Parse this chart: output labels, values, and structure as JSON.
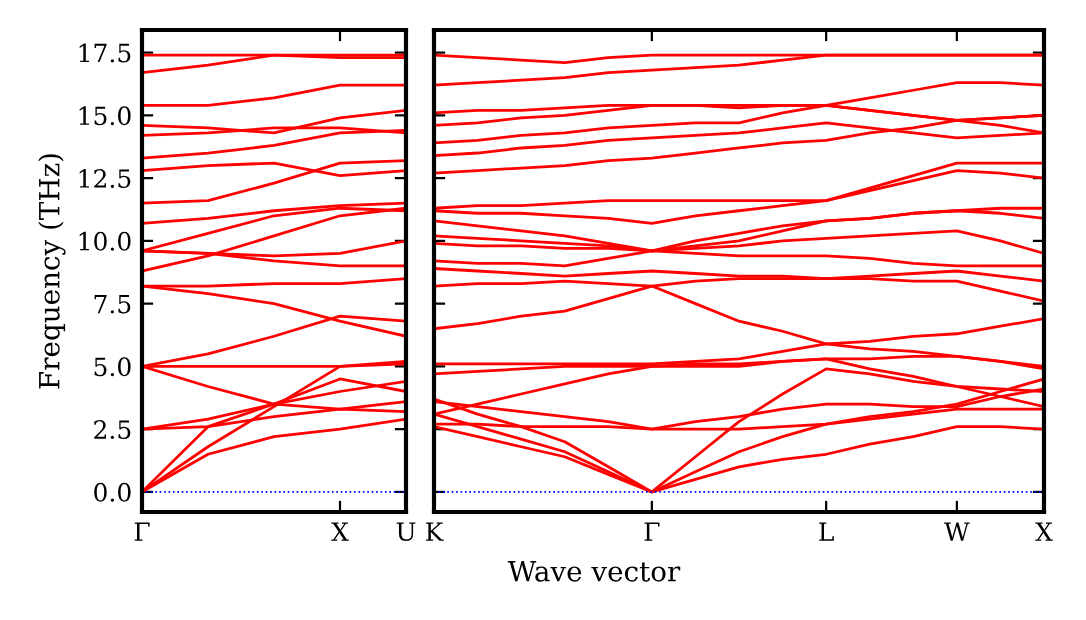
{
  "chart_data": [
    {
      "type": "line",
      "ylabel": "Frequency (THz)",
      "color": "#ff0000",
      "line_style": "solid",
      "marker": "none",
      "grid": false,
      "legend": false,
      "categories": [
        "Γ",
        null,
        null,
        "X",
        "U"
      ],
      "ylim": [
        -0.8,
        18.4
      ],
      "yticks": [
        {
          "value": 0,
          "label": "0.0"
        },
        {
          "value": 2.5,
          "label": "2.5"
        },
        {
          "value": 5,
          "label": "5.0"
        },
        {
          "value": 7.5,
          "label": "7.5"
        },
        {
          "value": 10,
          "label": "10.0"
        },
        {
          "value": 12.5,
          "label": "12.5"
        },
        {
          "value": 15,
          "label": "15.0"
        },
        {
          "value": 17.5,
          "label": "17.5"
        }
      ],
      "ref_lines": [
        {
          "axis": "y",
          "value": 0,
          "color": "#0000ff",
          "line_style": "dotted"
        }
      ],
      "series": [
        {
          "values": [
            0,
            1.5,
            2.2,
            2.5,
            2.9
          ]
        },
        {
          "values": [
            0,
            1.8,
            3.4,
            5.0,
            5.2
          ]
        },
        {
          "values": [
            0,
            2.6,
            3.5,
            3.3,
            3.6
          ]
        },
        {
          "values": [
            2.5,
            2.6,
            3.0,
            3.3,
            3.2
          ]
        },
        {
          "values": [
            2.5,
            2.9,
            3.5,
            4.5,
            4.0
          ]
        },
        {
          "values": [
            5.0,
            4.2,
            3.5,
            4.0,
            4.4
          ]
        },
        {
          "values": [
            5.0,
            5.0,
            5.0,
            5.0,
            5.1
          ]
        },
        {
          "values": [
            5.0,
            5.5,
            6.2,
            7.0,
            6.8
          ]
        },
        {
          "values": [
            8.2,
            7.9,
            7.5,
            6.8,
            6.2
          ]
        },
        {
          "values": [
            8.2,
            8.2,
            8.3,
            8.3,
            8.5
          ]
        },
        {
          "values": [
            8.8,
            9.4,
            10.2,
            11.0,
            11.3
          ]
        },
        {
          "values": [
            9.6,
            9.5,
            9.4,
            9.5,
            10.0
          ]
        },
        {
          "values": [
            9.6,
            9.5,
            9.2,
            9.0,
            9.0
          ]
        },
        {
          "values": [
            9.6,
            10.3,
            11.0,
            11.3,
            11.2
          ]
        },
        {
          "values": [
            10.7,
            10.9,
            11.2,
            11.4,
            11.5
          ]
        },
        {
          "values": [
            11.5,
            11.6,
            12.3,
            13.1,
            13.2
          ]
        },
        {
          "values": [
            12.8,
            13.0,
            13.1,
            12.6,
            12.8
          ]
        },
        {
          "values": [
            13.3,
            13.5,
            13.8,
            14.3,
            14.4
          ]
        },
        {
          "values": [
            14.2,
            14.3,
            14.5,
            14.5,
            14.3
          ]
        },
        {
          "values": [
            14.6,
            14.5,
            14.3,
            14.9,
            15.2
          ]
        },
        {
          "values": [
            15.4,
            15.4,
            15.7,
            16.2,
            16.2
          ]
        },
        {
          "values": [
            16.7,
            17.0,
            17.4,
            17.4,
            17.4
          ]
        },
        {
          "values": [
            17.4,
            17.4,
            17.4,
            17.3,
            17.3
          ]
        }
      ]
    },
    {
      "type": "line",
      "xlabel": "Wave vector",
      "color": "#ff0000",
      "line_style": "solid",
      "marker": "none",
      "grid": false,
      "legend": false,
      "tick_labels": "x",
      "categories": [
        "K",
        null,
        null,
        null,
        null,
        "Γ",
        null,
        null,
        null,
        "L",
        null,
        null,
        "W",
        null,
        "X"
      ],
      "ylim": [
        -0.8,
        18.4
      ],
      "yticks": [
        {
          "value": 0,
          "label": null
        },
        {
          "value": 2.5,
          "label": null
        },
        {
          "value": 5,
          "label": null
        },
        {
          "value": 7.5,
          "label": null
        },
        {
          "value": 10,
          "label": null
        },
        {
          "value": 12.5,
          "label": null
        },
        {
          "value": 15,
          "label": null
        },
        {
          "value": 17.5,
          "label": null
        }
      ],
      "ref_lines": [
        {
          "axis": "y",
          "value": 0,
          "color": "#0000ff",
          "line_style": "dotted"
        }
      ],
      "series": [
        {
          "values": [
            2.6,
            2.2,
            1.8,
            1.4,
            0.7,
            0,
            0.5,
            1.0,
            1.3,
            1.5,
            1.9,
            2.2,
            2.6,
            2.6,
            2.5
          ]
        },
        {
          "values": [
            3.1,
            2.6,
            2.1,
            1.6,
            0.8,
            0,
            0.8,
            1.6,
            2.2,
            2.7,
            2.9,
            3.1,
            3.3,
            3.3,
            3.3
          ]
        },
        {
          "values": [
            3.7,
            3.1,
            2.6,
            2.0,
            1.0,
            0,
            1.4,
            2.8,
            3.9,
            4.9,
            4.7,
            4.4,
            4.2,
            4.1,
            4.0
          ]
        },
        {
          "values": [
            2.7,
            2.7,
            2.6,
            2.6,
            2.6,
            2.5,
            2.5,
            2.5,
            2.6,
            2.7,
            3.0,
            3.2,
            3.5,
            4.0,
            4.5
          ]
        },
        {
          "values": [
            3.6,
            3.4,
            3.2,
            3.0,
            2.8,
            2.5,
            2.8,
            3.0,
            3.3,
            3.5,
            3.5,
            3.4,
            3.4,
            3.8,
            4.1
          ]
        },
        {
          "values": [
            4.7,
            4.8,
            4.9,
            5.0,
            5.0,
            5.0,
            5.0,
            5.0,
            5.2,
            5.3,
            5.3,
            5.4,
            5.4,
            5.2,
            4.9
          ]
        },
        {
          "values": [
            5.1,
            5.1,
            5.1,
            5.1,
            5.1,
            5.1,
            5.2,
            5.3,
            5.6,
            5.9,
            5.7,
            5.6,
            5.4,
            5.2,
            5.0
          ]
        },
        {
          "values": [
            3.1,
            3.5,
            3.9,
            4.3,
            4.7,
            5.0,
            5.1,
            5.1,
            5.2,
            5.3,
            4.9,
            4.6,
            4.2,
            3.8,
            3.4
          ]
        },
        {
          "values": [
            6.5,
            6.7,
            7.0,
            7.2,
            7.7,
            8.2,
            7.5,
            6.8,
            6.4,
            5.9,
            6.0,
            6.2,
            6.3,
            6.6,
            6.9
          ]
        },
        {
          "values": [
            8.2,
            8.3,
            8.3,
            8.4,
            8.3,
            8.2,
            8.4,
            8.5,
            8.5,
            8.5,
            8.5,
            8.4,
            8.4,
            8.0,
            7.6
          ]
        },
        {
          "values": [
            8.9,
            8.8,
            8.7,
            8.6,
            8.7,
            8.8,
            8.7,
            8.6,
            8.6,
            8.5,
            8.6,
            8.7,
            8.8,
            8.6,
            8.4
          ]
        },
        {
          "values": [
            9.2,
            9.1,
            9.1,
            9.0,
            9.3,
            9.6,
            9.5,
            9.4,
            9.4,
            9.4,
            9.3,
            9.1,
            9.0,
            9.0,
            9.0
          ]
        },
        {
          "values": [
            9.9,
            9.8,
            9.8,
            9.7,
            9.7,
            9.6,
            9.7,
            9.8,
            10.0,
            10.1,
            10.2,
            10.3,
            10.4,
            10.0,
            9.5
          ]
        },
        {
          "values": [
            10.2,
            10.1,
            10.0,
            9.9,
            9.8,
            9.6,
            10.0,
            10.3,
            10.6,
            10.8,
            10.9,
            11.1,
            11.2,
            11.1,
            10.9
          ]
        },
        {
          "values": [
            10.8,
            10.6,
            10.4,
            10.2,
            9.9,
            9.6,
            9.8,
            10.0,
            10.4,
            10.8,
            10.9,
            11.1,
            11.2,
            11.3,
            11.3
          ]
        },
        {
          "values": [
            11.2,
            11.1,
            11.1,
            11.0,
            10.9,
            10.7,
            11.0,
            11.2,
            11.4,
            11.6,
            12.0,
            12.4,
            12.8,
            12.7,
            12.5
          ]
        },
        {
          "values": [
            11.3,
            11.4,
            11.4,
            11.5,
            11.6,
            11.6,
            11.6,
            11.6,
            11.6,
            11.6,
            12.1,
            12.6,
            13.1,
            13.1,
            13.1
          ]
        },
        {
          "values": [
            12.7,
            12.8,
            12.9,
            13.0,
            13.2,
            13.3,
            13.5,
            13.7,
            13.9,
            14.0,
            14.3,
            14.5,
            14.8,
            14.9,
            15.0
          ]
        },
        {
          "values": [
            13.4,
            13.5,
            13.7,
            13.8,
            14.0,
            14.1,
            14.2,
            14.3,
            14.5,
            14.7,
            14.5,
            14.3,
            14.1,
            14.2,
            14.3
          ]
        },
        {
          "values": [
            13.9,
            14.0,
            14.2,
            14.3,
            14.5,
            14.6,
            14.7,
            14.7,
            15.1,
            15.4,
            15.2,
            15.0,
            14.8,
            14.6,
            14.3
          ]
        },
        {
          "values": [
            14.6,
            14.7,
            14.9,
            15.0,
            15.2,
            15.4,
            15.4,
            15.4,
            15.4,
            15.4,
            15.7,
            16.0,
            16.3,
            16.3,
            16.2
          ]
        },
        {
          "values": [
            15.1,
            15.2,
            15.2,
            15.3,
            15.4,
            15.4,
            15.4,
            15.3,
            15.4,
            15.4,
            15.2,
            15.0,
            14.8,
            14.9,
            15.0
          ]
        },
        {
          "values": [
            16.2,
            16.3,
            16.4,
            16.5,
            16.7,
            16.8,
            16.9,
            17.0,
            17.2,
            17.4,
            17.4,
            17.4,
            17.4,
            17.4,
            17.4
          ]
        },
        {
          "values": [
            17.4,
            17.3,
            17.2,
            17.1,
            17.3,
            17.4,
            17.4,
            17.4,
            17.4,
            17.4,
            17.4,
            17.4,
            17.4,
            17.4,
            17.4
          ]
        }
      ]
    }
  ]
}
